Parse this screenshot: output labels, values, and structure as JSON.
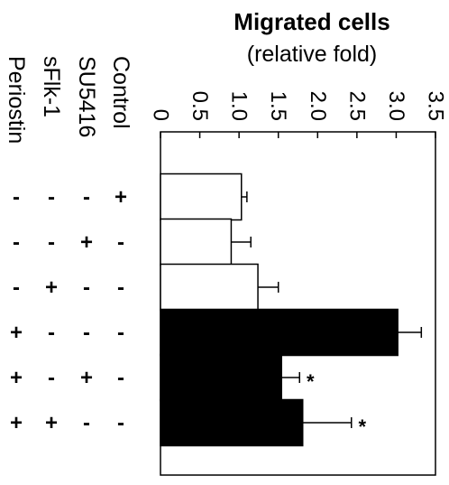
{
  "chart_data": {
    "type": "bar",
    "orientation": "horizontal",
    "title": "Migrated cells",
    "subtitle": "(relative fold)",
    "xlim": [
      0,
      3.5
    ],
    "ticks": [
      "0",
      "0.5",
      "1.0",
      "1.5",
      "2.0",
      "2.5",
      "3.0",
      "3.5"
    ],
    "tick_values": [
      0,
      0.5,
      1.0,
      1.5,
      2.0,
      2.5,
      3.0,
      3.5
    ],
    "factor_labels": [
      "Control",
      "SU5416",
      "sFlk-1",
      "Periostin"
    ],
    "groups": [
      {
        "value": 1.03,
        "error": 0.07,
        "color": "#ffffff",
        "signs": [
          "+",
          "-",
          "-",
          "-"
        ],
        "sig": ""
      },
      {
        "value": 0.9,
        "error": 0.25,
        "color": "#ffffff",
        "signs": [
          "-",
          "+",
          "-",
          "-"
        ],
        "sig": ""
      },
      {
        "value": 1.24,
        "error": 0.26,
        "color": "#ffffff",
        "signs": [
          "-",
          "-",
          "+",
          "-"
        ],
        "sig": ""
      },
      {
        "value": 3.02,
        "error": 0.3,
        "color": "#000000",
        "signs": [
          "-",
          "-",
          "-",
          "+"
        ],
        "sig": ""
      },
      {
        "value": 1.54,
        "error": 0.23,
        "color": "#000000",
        "signs": [
          "-",
          "+",
          "-",
          "+"
        ],
        "sig": "*"
      },
      {
        "value": 1.81,
        "error": 0.62,
        "color": "#000000",
        "signs": [
          "-",
          "-",
          "+",
          "+"
        ],
        "sig": "*"
      }
    ],
    "grid": false
  }
}
